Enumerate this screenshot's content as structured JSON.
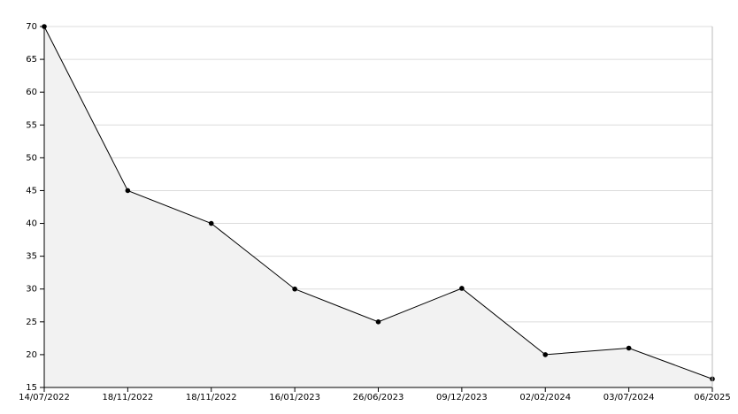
{
  "chart_data": {
    "type": "line",
    "categories": [
      "14/07/2022",
      "18/11/2022",
      "18/11/2022",
      "16/01/2023",
      "26/06/2023",
      "09/12/2023",
      "02/02/2024",
      "03/07/2024",
      "06/2025"
    ],
    "values": [
      70,
      45,
      40,
      30,
      25,
      30.1,
      20,
      21,
      16.3
    ],
    "color": "#000000",
    "area_color": "#f2f2f2",
    "ylim": [
      15,
      70
    ],
    "yticks": [
      15,
      20,
      25,
      30,
      35,
      40,
      45,
      50,
      55,
      60,
      65,
      70
    ],
    "grid": true
  }
}
